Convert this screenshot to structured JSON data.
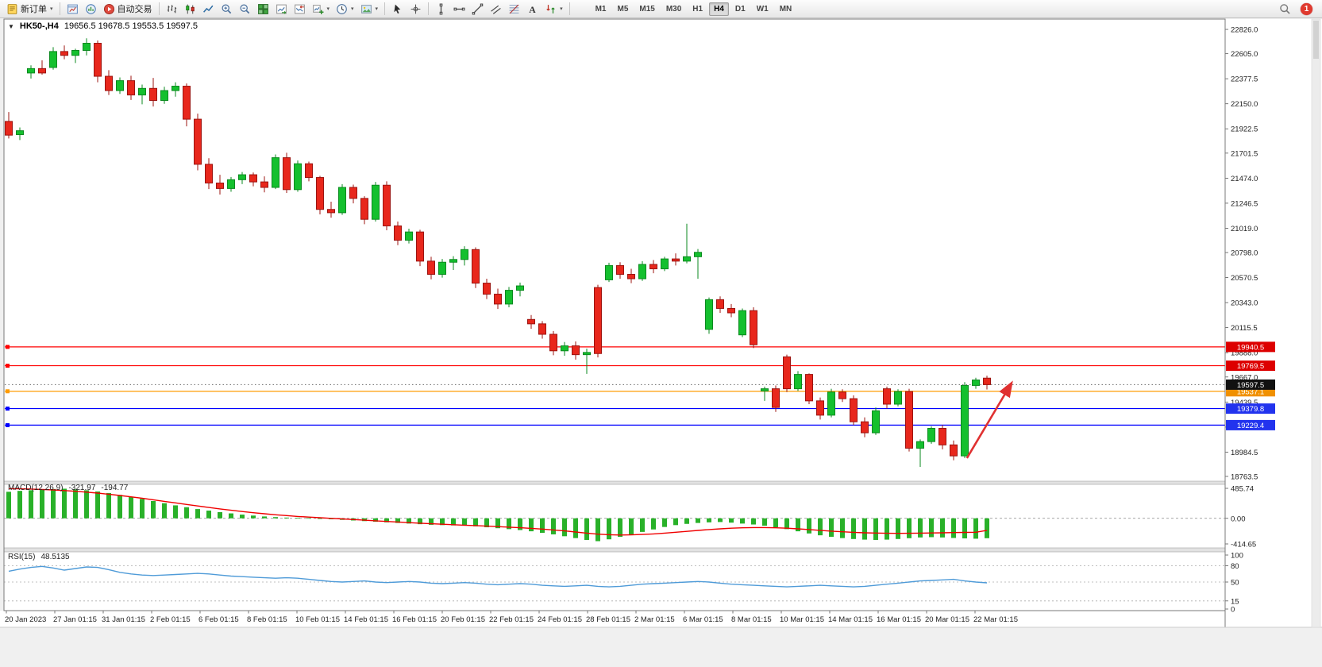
{
  "app": {
    "background": "#f0f0f0"
  },
  "toolbar": {
    "buttons": [
      {
        "name": "new-order-button",
        "icon": "doc",
        "label": "新订单",
        "caret": true
      },
      {
        "name": "separator"
      },
      {
        "name": "chart-window-button",
        "icon": "chartwin"
      },
      {
        "name": "market-watch-button",
        "icon": "quotes"
      },
      {
        "name": "autotrading-button",
        "icon": "play",
        "label": "自动交易"
      },
      {
        "name": "separator"
      },
      {
        "name": "bar-chart-button",
        "icon": "bars"
      },
      {
        "name": "candlestick-chart-button",
        "icon": "candles"
      },
      {
        "name": "line-chart-button",
        "icon": "linechart"
      },
      {
        "name": "zoom-in-button",
        "icon": "zoomin"
      },
      {
        "name": "zoom-out-button",
        "icon": "zoomout"
      },
      {
        "name": "tile-windows-button",
        "icon": "gridwin"
      },
      {
        "name": "auto-scroll-button",
        "icon": "chartup"
      },
      {
        "name": "chart-shift-button",
        "icon": "chartdown"
      },
      {
        "name": "indicators-button",
        "icon": "addind",
        "caret": true
      },
      {
        "name": "periods-button",
        "icon": "clock",
        "caret": true
      },
      {
        "name": "templates-button",
        "icon": "pic",
        "caret": true
      },
      {
        "name": "separator"
      },
      {
        "name": "cursor-button",
        "icon": "cursor"
      },
      {
        "name": "crosshair-button",
        "icon": "crosshair"
      },
      {
        "name": "separator"
      },
      {
        "name": "vertical-line-button",
        "icon": "vline"
      },
      {
        "name": "horizontal-line-button",
        "icon": "hline"
      },
      {
        "name": "trendline-button",
        "icon": "tline"
      },
      {
        "name": "channel-button",
        "icon": "channel"
      },
      {
        "name": "fibonacci-button",
        "icon": "fib"
      },
      {
        "name": "text-label-button",
        "icon": "textA"
      },
      {
        "name": "arrows-button",
        "icon": "arrows",
        "caret": true
      },
      {
        "name": "separator"
      }
    ],
    "timeframes": [
      "M1",
      "M5",
      "M15",
      "M30",
      "H1",
      "H4",
      "D1",
      "W1",
      "MN"
    ],
    "active_timeframe": "H4",
    "notification_count": "1"
  },
  "chart": {
    "collapse_icon": "▼",
    "title": "HK50-,H4",
    "ohlc": "19656.5 19678.5 19553.5 19597.5"
  },
  "chart_data": {
    "type": "candlestick",
    "symbol": "HK50-",
    "timeframe": "H4",
    "last_candle": {
      "open": 19656.5,
      "high": 19678.5,
      "low": 19553.5,
      "close": 19597.5
    },
    "up_color": "#14c02e",
    "up_border": "#0b8a1f",
    "down_color": "#e8271c",
    "down_border": "#9c1410",
    "candles": [
      [
        21990,
        22075,
        21835,
        21865
      ],
      [
        21870,
        21935,
        21820,
        21905
      ],
      [
        22430,
        22500,
        22380,
        22470
      ],
      [
        22470,
        22545,
        22415,
        22430
      ],
      [
        22480,
        22665,
        22460,
        22625
      ],
      [
        22625,
        22680,
        22555,
        22590
      ],
      [
        22590,
        22650,
        22520,
        22635
      ],
      [
        22635,
        22745,
        22590,
        22700
      ],
      [
        22700,
        22725,
        22345,
        22400
      ],
      [
        22400,
        22455,
        22230,
        22270
      ],
      [
        22270,
        22390,
        22240,
        22360
      ],
      [
        22360,
        22405,
        22185,
        22230
      ],
      [
        22230,
        22325,
        22145,
        22290
      ],
      [
        22290,
        22385,
        22125,
        22180
      ],
      [
        22180,
        22305,
        22150,
        22270
      ],
      [
        22270,
        22345,
        22215,
        22310
      ],
      [
        22310,
        22335,
        21945,
        22010
      ],
      [
        22010,
        22060,
        21545,
        21600
      ],
      [
        21600,
        21655,
        21375,
        21430
      ],
      [
        21430,
        21505,
        21325,
        21380
      ],
      [
        21380,
        21485,
        21350,
        21460
      ],
      [
        21460,
        21530,
        21420,
        21505
      ],
      [
        21505,
        21525,
        21400,
        21440
      ],
      [
        21440,
        21490,
        21345,
        21390
      ],
      [
        21390,
        21690,
        21375,
        21660
      ],
      [
        21660,
        21705,
        21340,
        21370
      ],
      [
        21370,
        21635,
        21350,
        21605
      ],
      [
        21605,
        21625,
        21445,
        21480
      ],
      [
        21480,
        21495,
        21145,
        21190
      ],
      [
        21190,
        21260,
        21115,
        21160
      ],
      [
        21160,
        21420,
        21140,
        21390
      ],
      [
        21390,
        21415,
        21245,
        21290
      ],
      [
        21290,
        21310,
        21055,
        21100
      ],
      [
        21100,
        21440,
        21080,
        21410
      ],
      [
        21410,
        21445,
        21000,
        21040
      ],
      [
        21040,
        21080,
        20865,
        20910
      ],
      [
        20910,
        21015,
        20880,
        20985
      ],
      [
        20985,
        21005,
        20675,
        20720
      ],
      [
        20720,
        20760,
        20555,
        20600
      ],
      [
        20600,
        20740,
        20570,
        20710
      ],
      [
        20710,
        20765,
        20640,
        20735
      ],
      [
        20735,
        20855,
        20680,
        20825
      ],
      [
        20825,
        20845,
        20475,
        20520
      ],
      [
        20520,
        20560,
        20375,
        20420
      ],
      [
        20420,
        20470,
        20285,
        20330
      ],
      [
        20330,
        20485,
        20300,
        20455
      ],
      [
        20455,
        20525,
        20400,
        20495
      ],
      [
        20190,
        20230,
        20105,
        20150
      ],
      [
        20150,
        20175,
        20015,
        20055
      ],
      [
        20055,
        20085,
        19865,
        19905
      ],
      [
        19905,
        19985,
        19860,
        19950
      ],
      [
        19950,
        19990,
        19825,
        19870
      ],
      [
        19870,
        19925,
        19695,
        19890
      ],
      [
        20480,
        20505,
        19845,
        19880
      ],
      [
        20550,
        20705,
        20530,
        20680
      ],
      [
        20680,
        20710,
        20560,
        20600
      ],
      [
        20600,
        20650,
        20520,
        20560
      ],
      [
        20560,
        20720,
        20540,
        20690
      ],
      [
        20690,
        20730,
        20610,
        20650
      ],
      [
        20650,
        20760,
        20630,
        20740
      ],
      [
        20740,
        20790,
        20680,
        20720
      ],
      [
        20720,
        21060,
        20700,
        20760
      ],
      [
        20760,
        20830,
        20560,
        20800
      ],
      [
        20100,
        20390,
        20060,
        20370
      ],
      [
        20370,
        20400,
        20250,
        20290
      ],
      [
        20290,
        20330,
        20210,
        20250
      ],
      [
        20050,
        20290,
        20030,
        20270
      ],
      [
        20270,
        20300,
        19930,
        19960
      ],
      [
        19540,
        19580,
        19450,
        19560
      ],
      [
        19560,
        19590,
        19350,
        19390
      ],
      [
        19850,
        19870,
        19530,
        19560
      ],
      [
        19560,
        19720,
        19540,
        19690
      ],
      [
        19690,
        19700,
        19420,
        19450
      ],
      [
        19450,
        19480,
        19280,
        19320
      ],
      [
        19320,
        19560,
        19300,
        19530
      ],
      [
        19530,
        19555,
        19440,
        19470
      ],
      [
        19470,
        19500,
        19230,
        19260
      ],
      [
        19260,
        19300,
        19120,
        19160
      ],
      [
        19160,
        19390,
        19140,
        19360
      ],
      [
        19560,
        19580,
        19380,
        19420
      ],
      [
        19420,
        19555,
        19400,
        19535
      ],
      [
        19535,
        19560,
        18990,
        19020
      ],
      [
        19020,
        19100,
        18850,
        19080
      ],
      [
        19080,
        19220,
        19060,
        19200
      ],
      [
        19200,
        19230,
        19010,
        19050
      ],
      [
        19050,
        19090,
        18910,
        18950
      ],
      [
        18950,
        19620,
        18930,
        19590
      ],
      [
        19590,
        19660,
        19560,
        19640
      ],
      [
        19656.5,
        19678.5,
        19553.5,
        19597.5
      ]
    ],
    "price_axis_ticks": [
      "22826.0",
      "22605.0",
      "22377.5",
      "22150.0",
      "21922.5",
      "21701.5",
      "21474.0",
      "21246.5",
      "21019.0",
      "20798.0",
      "20570.5",
      "20343.0",
      "20115.5",
      "19888.0",
      "19667.0",
      "19439.5",
      "19211.5",
      "18984.5",
      "18763.5"
    ],
    "date_axis_labels": [
      "20 Jan 2023",
      "27 Jan 01:15",
      "31 Jan 01:15",
      "2 Feb 01:15",
      "6 Feb 01:15",
      "8 Feb 01:15",
      "10 Feb 01:15",
      "14 Feb 01:15",
      "16 Feb 01:15",
      "20 Feb 01:15",
      "22 Feb 01:15",
      "24 Feb 01:15",
      "28 Feb 01:15",
      "2 Mar 01:15",
      "6 Mar 01:15",
      "8 Mar 01:15",
      "10 Mar 01:15",
      "14 Mar 01:15",
      "16 Mar 01:15",
      "20 Mar 01:15",
      "22 Mar 01:15"
    ],
    "levels": [
      {
        "price": 19940.5,
        "label": "19940.5",
        "line_color": "#ff0000",
        "badge_color": "#dd0000"
      },
      {
        "price": 19769.5,
        "label": "19769.5",
        "line_color": "#ff0000",
        "badge_color": "#dd0000"
      },
      {
        "price": 19537.1,
        "label": "19537.1",
        "line_color": "#ff9c00",
        "badge_color": "#f09000"
      },
      {
        "price": 19379.8,
        "label": "19379.8",
        "line_color": "#0000ff",
        "badge_color": "#2233ee"
      },
      {
        "price": 19229.4,
        "label": "19229.4",
        "line_color": "#0000ff",
        "badge_color": "#2233ee"
      }
    ],
    "current_price": {
      "price": 19597.5,
      "label": "19597.5",
      "badge_color": "#111111"
    },
    "trend_arrow": {
      "from_bar": 86.2,
      "from_price": 18930,
      "to_bar": 90.2,
      "to_price": 19610,
      "color": "#e03131"
    },
    "indicators": {
      "macd": {
        "label": "MACD(12,26,9)",
        "value_main": "-321.97",
        "value_signal": "-194.77",
        "scale_labels": [
          "485.74",
          "0.00",
          "-414.65"
        ],
        "scale_max": 485.74,
        "scale_min": -414.65,
        "histogram_color": "#29b129",
        "signal_color": "#f00000",
        "histogram": [
          430,
          445,
          455,
          465,
          475,
          480,
          470,
          455,
          435,
          410,
          380,
          350,
          315,
          280,
          245,
          210,
          180,
          150,
          125,
          100,
          80,
          60,
          45,
          30,
          20,
          12,
          8,
          5,
          -5,
          -15,
          -25,
          -35,
          -45,
          -55,
          -65,
          -75,
          -85,
          -95,
          -105,
          -110,
          -115,
          -120,
          -130,
          -145,
          -160,
          -175,
          -190,
          -210,
          -235,
          -260,
          -290,
          -320,
          -350,
          -370,
          -340,
          -300,
          -260,
          -220,
          -180,
          -140,
          -110,
          -90,
          -75,
          -65,
          -60,
          -70,
          -85,
          -100,
          -120,
          -145,
          -175,
          -210,
          -245,
          -275,
          -300,
          -320,
          -335,
          -345,
          -350,
          -345,
          -335,
          -322,
          -310,
          -305,
          -310,
          -318,
          -325,
          -330,
          -322
        ],
        "signal": [
          480,
          478,
          474,
          468,
          460,
          450,
          438,
          424,
          408,
          390,
          370,
          348,
          325,
          300,
          275,
          250,
          225,
          200,
          176,
          153,
          131,
          110,
          91,
          74,
          58,
          44,
          31,
          20,
          10,
          0,
          -10,
          -20,
          -30,
          -40,
          -50,
          -60,
          -70,
          -79,
          -88,
          -96,
          -104,
          -111,
          -118,
          -126,
          -134,
          -143,
          -152,
          -162,
          -174,
          -188,
          -204,
          -222,
          -240,
          -256,
          -266,
          -270,
          -268,
          -262,
          -252,
          -240,
          -226,
          -211,
          -196,
          -182,
          -170,
          -160,
          -153,
          -150,
          -150,
          -153,
          -160,
          -170,
          -182,
          -195,
          -207,
          -218,
          -227,
          -234,
          -239,
          -242,
          -243,
          -242,
          -240,
          -237,
          -234,
          -231,
          -228,
          -225,
          -195
        ]
      },
      "rsi": {
        "label": "RSI(15)",
        "value_text": "48.5135",
        "levels": [
          "100",
          "80",
          "50",
          "15",
          "0"
        ],
        "dashed_levels": [
          80,
          50,
          15
        ],
        "line_color": "#4f9bd8",
        "series": [
          70,
          74,
          77,
          79,
          76,
          72,
          75,
          78,
          77,
          73,
          68,
          65,
          63,
          62,
          63,
          64,
          65,
          66,
          65,
          63,
          61,
          60,
          59,
          58,
          57,
          58,
          57,
          55,
          53,
          51,
          50,
          51,
          52,
          50,
          49,
          50,
          51,
          50,
          48,
          47,
          48,
          49,
          48,
          46,
          45,
          46,
          47,
          46,
          44,
          43,
          42,
          43,
          44,
          42,
          41,
          42,
          44,
          46,
          47,
          48,
          49,
          50,
          51,
          50,
          48,
          46,
          45,
          44,
          43,
          42,
          41,
          42,
          43,
          44,
          43,
          42,
          41,
          42,
          44,
          46,
          48,
          50,
          52,
          53,
          54,
          55,
          52,
          50,
          48.5
        ]
      }
    }
  }
}
